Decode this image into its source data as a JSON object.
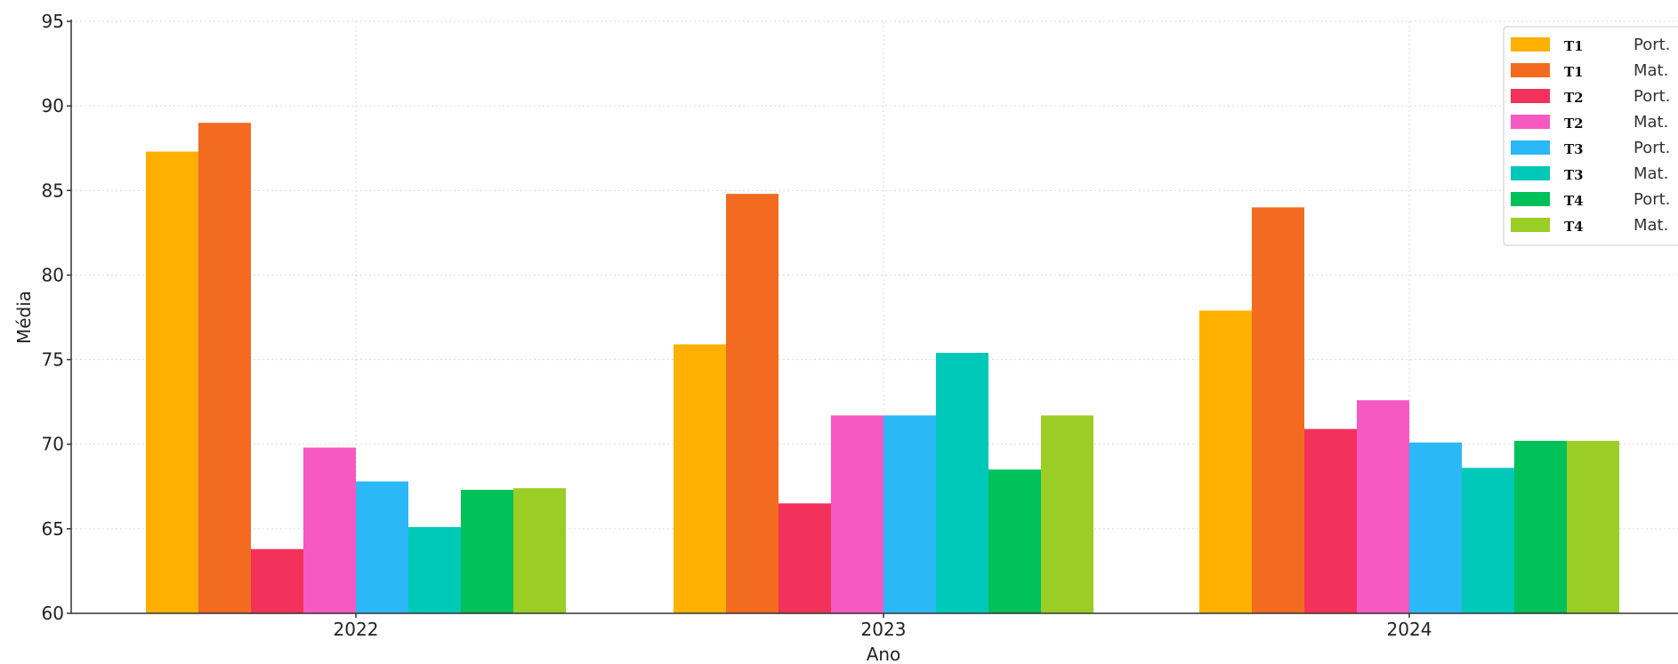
{
  "chart_data": {
    "type": "bar",
    "title": "",
    "xlabel": "Ano",
    "ylabel": "Média",
    "ylim": [
      60,
      95
    ],
    "yticks": [
      60,
      65,
      70,
      75,
      80,
      85,
      90,
      95
    ],
    "categories": [
      "2022",
      "2023",
      "2024"
    ],
    "grid": true,
    "legend_position": "top-right",
    "series": [
      {
        "team": "T1",
        "subject": "Port.",
        "color": "#FFB000",
        "values": [
          87.3,
          75.9,
          77.9
        ]
      },
      {
        "team": "T1",
        "subject": "Mat.",
        "color": "#F26B21",
        "values": [
          89.0,
          84.8,
          84.0
        ]
      },
      {
        "team": "T2",
        "subject": "Port.",
        "color": "#F2325A",
        "values": [
          63.8,
          66.5,
          70.9
        ]
      },
      {
        "team": "T2",
        "subject": "Mat.",
        "color": "#F759C3",
        "values": [
          69.8,
          71.7,
          72.6
        ]
      },
      {
        "team": "T3",
        "subject": "Port.",
        "color": "#2BB8F6",
        "values": [
          67.8,
          71.7,
          70.1
        ]
      },
      {
        "team": "T3",
        "subject": "Mat.",
        "color": "#00C8B8",
        "values": [
          65.1,
          75.4,
          68.6
        ]
      },
      {
        "team": "T4",
        "subject": "Port.",
        "color": "#00C05A",
        "values": [
          67.3,
          68.5,
          70.2
        ]
      },
      {
        "team": "T4",
        "subject": "Mat.",
        "color": "#9ACD25",
        "values": [
          67.4,
          71.7,
          70.2
        ]
      }
    ]
  }
}
